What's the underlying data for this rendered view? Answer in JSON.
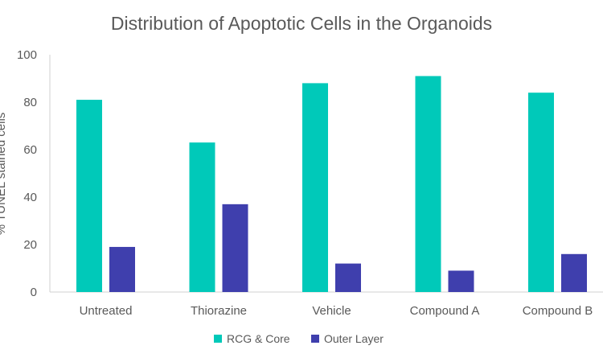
{
  "chart_data": {
    "type": "bar",
    "title": "Distribution of Apoptotic Cells in the Organoids",
    "xlabel": "",
    "ylabel": "% TUNEL stained cells",
    "ylim": [
      0,
      100
    ],
    "yticks": [
      0,
      20,
      40,
      60,
      80,
      100
    ],
    "grid": false,
    "legend_position": "bottom",
    "categories": [
      "Untreated",
      "Thiorazine",
      "Vehicle",
      "Compound A",
      "Compound B"
    ],
    "series": [
      {
        "name": "RCG & Core",
        "color": "#00c9b9",
        "values": [
          81,
          63,
          88,
          91,
          84
        ]
      },
      {
        "name": "Outer Layer",
        "color": "#3f3fad",
        "values": [
          19,
          37,
          12,
          9,
          16
        ]
      }
    ]
  }
}
